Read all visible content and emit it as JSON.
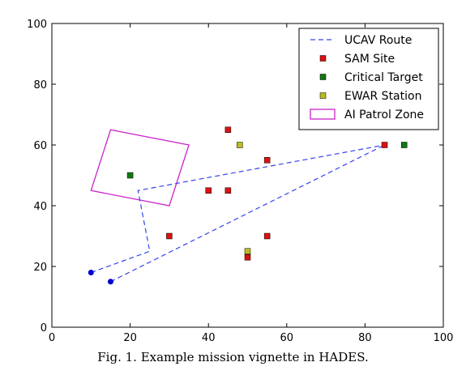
{
  "caption": "Fig. 1.    Example mission vignette in HADES.",
  "chart_data": {
    "type": "scatter",
    "title": "",
    "xlabel": "",
    "ylabel": "",
    "xlim": [
      0,
      100
    ],
    "ylim": [
      0,
      100
    ],
    "xticks": [
      0,
      20,
      40,
      60,
      80,
      100
    ],
    "yticks": [
      0,
      20,
      40,
      60,
      80,
      100
    ],
    "grid": false,
    "legend_position": "top-right",
    "series": [
      {
        "name": "UCAV Route",
        "kind": "dashed-line",
        "color": "#3344ee",
        "paths": [
          [
            [
              10,
              18
            ],
            [
              25,
              25
            ],
            [
              22,
              45
            ],
            [
              85,
              60
            ]
          ],
          [
            [
              15,
              15
            ],
            [
              85,
              60
            ]
          ]
        ],
        "start_points": [
          [
            10,
            18
          ],
          [
            15,
            15
          ]
        ],
        "start_color": "#0000cc"
      },
      {
        "name": "SAM Site",
        "kind": "square-marker",
        "color": "#dd1111",
        "points": [
          [
            45,
            65
          ],
          [
            55,
            55
          ],
          [
            40,
            45
          ],
          [
            45,
            45
          ],
          [
            30,
            30
          ],
          [
            55,
            30
          ],
          [
            50,
            23
          ],
          [
            85,
            60
          ]
        ]
      },
      {
        "name": "Critical Target",
        "kind": "square-marker",
        "color": "#117711",
        "points": [
          [
            20,
            50
          ],
          [
            90,
            60
          ]
        ]
      },
      {
        "name": "EWAR Station",
        "kind": "square-marker",
        "color": "#bbbb22",
        "points": [
          [
            48,
            60
          ],
          [
            50,
            25
          ]
        ]
      },
      {
        "name": "AI Patrol Zone",
        "kind": "polygon",
        "color": "#cc22cc",
        "vertices": [
          [
            15,
            65
          ],
          [
            35,
            60
          ],
          [
            30,
            40
          ],
          [
            10,
            45
          ]
        ]
      }
    ]
  }
}
